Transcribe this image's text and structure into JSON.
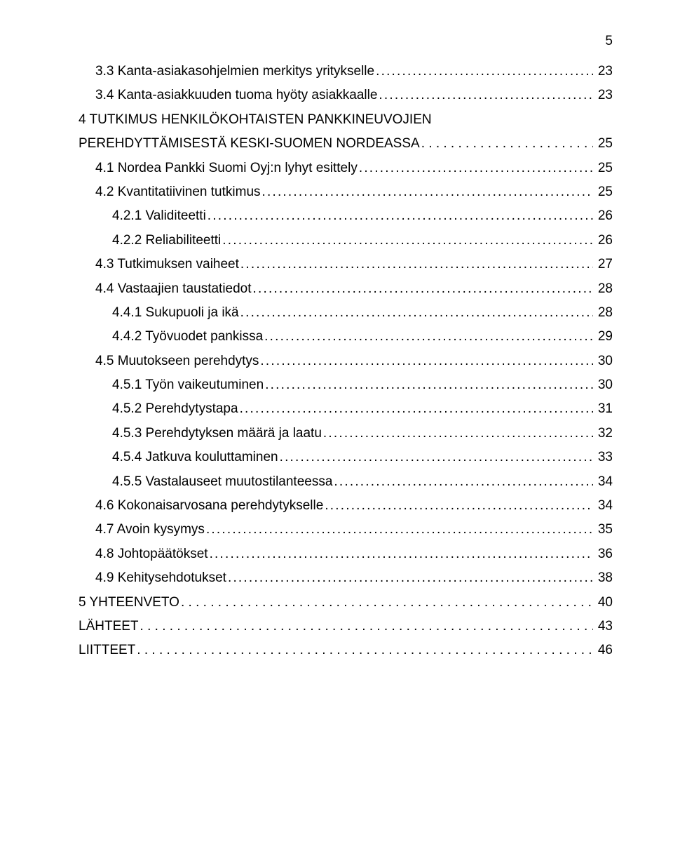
{
  "page_number": "5",
  "font": {
    "family": "Arial",
    "base_size_pt": 14
  },
  "colors": {
    "text": "#000000",
    "background": "#ffffff"
  },
  "toc": [
    {
      "level": 1,
      "label": "3.3 Kanta-asiakasohjelmien merkitys yritykselle",
      "page": "23",
      "leader": "dots"
    },
    {
      "level": 1,
      "label": "3.4 Kanta-asiakkuuden tuoma hyöty asiakkaalle",
      "page": "23",
      "leader": "dots"
    },
    {
      "level": 0,
      "label": "4 TUTKIMUS HENKILÖKOHTAISTEN PANKKINEUVOJIEN",
      "page": "",
      "leader": "none"
    },
    {
      "level": 0,
      "label": "PEREHDYTTÄMISESTÄ KESKI-SUOMEN NORDEASSA",
      "page": "25",
      "leader": "spaced"
    },
    {
      "level": 1,
      "label": "4.1 Nordea Pankki Suomi Oyj:n lyhyt esittely",
      "page": "25",
      "leader": "dots"
    },
    {
      "level": 1,
      "label": "4.2 Kvantitatiivinen tutkimus",
      "page": "25",
      "leader": "dots"
    },
    {
      "level": 2,
      "label": "4.2.1 Validiteetti",
      "page": "26",
      "leader": "dots"
    },
    {
      "level": 2,
      "label": "4.2.2 Reliabiliteetti",
      "page": "26",
      "leader": "dots"
    },
    {
      "level": 1,
      "label": "4.3 Tutkimuksen vaiheet",
      "page": "27",
      "leader": "dots"
    },
    {
      "level": 1,
      "label": "4.4 Vastaajien taustatiedot",
      "page": "28",
      "leader": "dots"
    },
    {
      "level": 2,
      "label": "4.4.1 Sukupuoli ja ikä",
      "page": "28",
      "leader": "dots"
    },
    {
      "level": 2,
      "label": "4.4.2 Työvuodet pankissa",
      "page": "29",
      "leader": "dots"
    },
    {
      "level": 1,
      "label": "4.5 Muutokseen perehdytys",
      "page": "30",
      "leader": "dots"
    },
    {
      "level": 2,
      "label": "4.5.1 Työn vaikeutuminen",
      "page": "30",
      "leader": "dots"
    },
    {
      "level": 2,
      "label": "4.5.2 Perehdytystapa",
      "page": "31",
      "leader": "dots"
    },
    {
      "level": 2,
      "label": "4.5.3 Perehdytyksen määrä ja laatu",
      "page": "32",
      "leader": "dots"
    },
    {
      "level": 2,
      "label": "4.5.4 Jatkuva kouluttaminen",
      "page": "33",
      "leader": "dots"
    },
    {
      "level": 2,
      "label": "4.5.5 Vastalauseet muutostilanteessa",
      "page": "34",
      "leader": "dots"
    },
    {
      "level": 1,
      "label": "4.6 Kokonaisarvosana perehdytykselle",
      "page": "34",
      "leader": "dots"
    },
    {
      "level": 1,
      "label": "4.7 Avoin kysymys",
      "page": "35",
      "leader": "dots"
    },
    {
      "level": 1,
      "label": "4.8 Johtopäätökset",
      "page": "36",
      "leader": "dots"
    },
    {
      "level": 1,
      "label": "4.9 Kehitysehdotukset",
      "page": "38",
      "leader": "dots"
    },
    {
      "level": 0,
      "label": "5 YHTEENVETO",
      "page": "40",
      "leader": "spaced"
    },
    {
      "level": 0,
      "label": "LÄHTEET",
      "page": "43",
      "leader": "spaced"
    },
    {
      "level": 0,
      "label": "LIITTEET",
      "page": "46",
      "leader": "spaced"
    }
  ]
}
